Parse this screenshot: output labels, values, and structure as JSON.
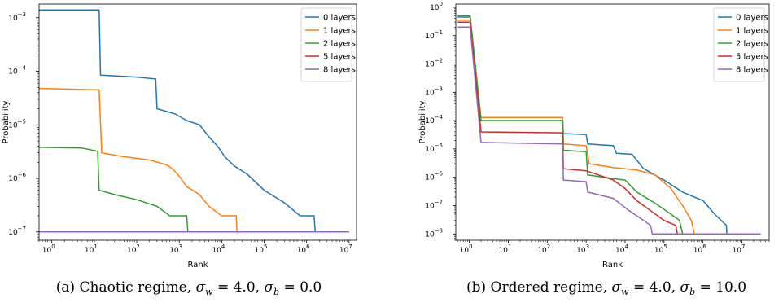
{
  "chart_data": [
    {
      "type": "line",
      "xscale": "log",
      "yscale": "log",
      "xlim": [
        0.5,
        15000000
      ],
      "ylim": [
        7e-08,
        0.0018
      ],
      "xlabel": "Rank",
      "ylabel": "Probability",
      "caption": "(a) Chaotic regime, σw = 4.0, σb = 0.0",
      "caption_parts": {
        "prefix": "(a) Chaotic regime, ",
        "s1": "σ",
        "s1_sub": "w",
        "v1": " = 4.0, ",
        "s2": "σ",
        "s2_sub": "b",
        "v2": " = 0.0"
      },
      "xticks": [
        {
          "v": 1,
          "exp": "0"
        },
        {
          "v": 10,
          "exp": "1"
        },
        {
          "v": 100,
          "exp": "2"
        },
        {
          "v": 1000,
          "exp": "3"
        },
        {
          "v": 10000,
          "exp": "4"
        },
        {
          "v": 100000,
          "exp": "5"
        },
        {
          "v": 1000000,
          "exp": "6"
        },
        {
          "v": 10000000,
          "exp": "7"
        }
      ],
      "yticks": [
        {
          "v": 1e-07,
          "exp": "−7"
        },
        {
          "v": 1e-06,
          "exp": "−6"
        },
        {
          "v": 1e-05,
          "exp": "−5"
        },
        {
          "v": 0.0001,
          "exp": "−4"
        },
        {
          "v": 0.001,
          "exp": "−3"
        }
      ],
      "tick_base": "10",
      "legend_position": "upper-right",
      "series": [
        {
          "name": "0 layers",
          "color": "#1f77b4",
          "points": [
            [
              0.5,
              0.0014
            ],
            [
              13,
              0.0014
            ],
            [
              14,
              8.5e-05
            ],
            [
              100,
              7.8e-05
            ],
            [
              280,
              7.2e-05
            ],
            [
              300,
              2e-05
            ],
            [
              800,
              1.6e-05
            ],
            [
              1500,
              1.2e-05
            ],
            [
              3000,
              1e-05
            ],
            [
              5000,
              6e-06
            ],
            [
              8000,
              4e-06
            ],
            [
              12000,
              2.5e-06
            ],
            [
              20000,
              1.7e-06
            ],
            [
              40000,
              1.2e-06
            ],
            [
              100000,
              6e-07
            ],
            [
              300000,
              3.5e-07
            ],
            [
              700000,
              2e-07
            ],
            [
              1500000,
              2e-07
            ],
            [
              1600000,
              1e-07
            ],
            [
              10000000,
              1e-07
            ]
          ]
        },
        {
          "name": "1 layers",
          "color": "#ff7f0e",
          "points": [
            [
              0.5,
              4.8e-05
            ],
            [
              4,
              4.6e-05
            ],
            [
              13,
              4.5e-05
            ],
            [
              15,
              3e-06
            ],
            [
              40,
              2.6e-06
            ],
            [
              200,
              2.2e-06
            ],
            [
              500,
              1.8e-06
            ],
            [
              700,
              1.5e-06
            ],
            [
              1000,
              1.1e-06
            ],
            [
              1500,
              7e-07
            ],
            [
              3000,
              5e-07
            ],
            [
              5000,
              3e-07
            ],
            [
              10000,
              2e-07
            ],
            [
              22000,
              2e-07
            ],
            [
              23000,
              1e-07
            ],
            [
              10000000,
              1e-07
            ]
          ]
        },
        {
          "name": "2 layers",
          "color": "#2ca02c",
          "points": [
            [
              0.5,
              3.8e-06
            ],
            [
              5,
              3.7e-06
            ],
            [
              12,
              3.2e-06
            ],
            [
              13,
              6e-07
            ],
            [
              30,
              5e-07
            ],
            [
              100,
              4e-07
            ],
            [
              300,
              3e-07
            ],
            [
              600,
              2e-07
            ],
            [
              1500,
              2e-07
            ],
            [
              1600,
              1e-07
            ],
            [
              10000000,
              1e-07
            ]
          ]
        },
        {
          "name": "5 layers",
          "color": "#d62728",
          "points": [
            [
              0.5,
              1e-07
            ],
            [
              10000000,
              1e-07
            ]
          ]
        },
        {
          "name": "8 layers",
          "color": "#9467bd",
          "points": [
            [
              0.5,
              1e-07
            ],
            [
              10000000,
              1e-07
            ]
          ]
        }
      ]
    },
    {
      "type": "line",
      "xscale": "log",
      "yscale": "log",
      "xlim": [
        0.45,
        50000000
      ],
      "ylim": [
        6e-09,
        1.3
      ],
      "xlabel": "Rank",
      "ylabel": "Probability",
      "caption": "(b) Ordered regime, σw = 4.0, σb = 10.0",
      "caption_parts": {
        "prefix": "(b) Ordered regime, ",
        "s1": "σ",
        "s1_sub": "w",
        "v1": " = 4.0, ",
        "s2": "σ",
        "s2_sub": "b",
        "v2": " = 10.0"
      },
      "xticks": [
        {
          "v": 1,
          "exp": "0"
        },
        {
          "v": 10,
          "exp": "1"
        },
        {
          "v": 100,
          "exp": "2"
        },
        {
          "v": 1000,
          "exp": "3"
        },
        {
          "v": 10000,
          "exp": "4"
        },
        {
          "v": 100000,
          "exp": "5"
        },
        {
          "v": 1000000,
          "exp": "6"
        },
        {
          "v": 10000000,
          "exp": "7"
        }
      ],
      "yticks": [
        {
          "v": 1e-08,
          "exp": "−8"
        },
        {
          "v": 1e-07,
          "exp": "−7"
        },
        {
          "v": 1e-06,
          "exp": "−6"
        },
        {
          "v": 1e-05,
          "exp": "−5"
        },
        {
          "v": 0.0001,
          "exp": "−4"
        },
        {
          "v": 0.001,
          "exp": "−3"
        },
        {
          "v": 0.01,
          "exp": "−2"
        },
        {
          "v": 0.1,
          "exp": "−1"
        },
        {
          "v": 1,
          "exp": "0"
        }
      ],
      "tick_base": "10",
      "legend_position": "upper-right",
      "series": [
        {
          "name": "0 layers",
          "color": "#1f77b4",
          "points": [
            [
              0.5,
              0.45
            ],
            [
              0.9,
              0.45
            ],
            [
              1.05,
              0.45
            ],
            [
              2,
              0.0001
            ],
            [
              250,
              0.0001
            ],
            [
              260,
              3.5e-05
            ],
            [
              1000,
              3.2e-05
            ],
            [
              1100,
              1.5e-05
            ],
            [
              5000,
              1.3e-05
            ],
            [
              6000,
              7e-06
            ],
            [
              15000,
              6.5e-06
            ],
            [
              30000,
              2e-06
            ],
            [
              100000,
              8e-07
            ],
            [
              300000,
              3e-07
            ],
            [
              1000000,
              1.5e-07
            ],
            [
              2000000,
              5e-08
            ],
            [
              4000000,
              2e-08
            ],
            [
              4100000,
              1e-08
            ],
            [
              30000000,
              1e-08
            ]
          ]
        },
        {
          "name": "1 layers",
          "color": "#ff7f0e",
          "points": [
            [
              0.5,
              0.35
            ],
            [
              1.05,
              0.35
            ],
            [
              2,
              0.00013
            ],
            [
              250,
              0.00013
            ],
            [
              260,
              1.5e-05
            ],
            [
              1000,
              1.3e-05
            ],
            [
              1200,
              3e-06
            ],
            [
              5000,
              2.2e-06
            ],
            [
              20000,
              1.8e-06
            ],
            [
              60000,
              1.2e-06
            ],
            [
              150000,
              4e-07
            ],
            [
              300000,
              1e-07
            ],
            [
              500000,
              3e-08
            ],
            [
              600000,
              1e-08
            ],
            [
              30000000,
              1e-08
            ]
          ]
        },
        {
          "name": "2 layers",
          "color": "#2ca02c",
          "points": [
            [
              0.5,
              0.5
            ],
            [
              1.05,
              0.5
            ],
            [
              2,
              0.0001
            ],
            [
              250,
              0.0001
            ],
            [
              260,
              9e-06
            ],
            [
              1000,
              8e-06
            ],
            [
              1100,
              1.2e-06
            ],
            [
              5000,
              9e-07
            ],
            [
              10000,
              8e-07
            ],
            [
              20000,
              3e-07
            ],
            [
              60000,
              1.2e-07
            ],
            [
              150000,
              5e-08
            ],
            [
              250000,
              3e-08
            ],
            [
              300000,
              1e-08
            ],
            [
              30000000,
              1e-08
            ]
          ]
        },
        {
          "name": "5 layers",
          "color": "#d62728",
          "points": [
            [
              0.5,
              0.3
            ],
            [
              1.05,
              0.3
            ],
            [
              2,
              4e-05
            ],
            [
              250,
              3.7e-05
            ],
            [
              260,
              2e-06
            ],
            [
              1000,
              1.7e-06
            ],
            [
              5000,
              8e-07
            ],
            [
              10000,
              4e-07
            ],
            [
              20000,
              1.5e-07
            ],
            [
              50000,
              6e-08
            ],
            [
              100000,
              3e-08
            ],
            [
              200000,
              2e-08
            ],
            [
              220000,
              1e-08
            ],
            [
              30000000,
              1e-08
            ]
          ]
        },
        {
          "name": "8 layers",
          "color": "#9467bd",
          "points": [
            [
              0.5,
              0.2
            ],
            [
              1.05,
              0.2
            ],
            [
              2,
              1.7e-05
            ],
            [
              250,
              1.5e-05
            ],
            [
              260,
              8e-07
            ],
            [
              1000,
              7e-07
            ],
            [
              1100,
              3e-07
            ],
            [
              5000,
              1.8e-07
            ],
            [
              12000,
              7e-08
            ],
            [
              30000,
              3e-08
            ],
            [
              45000,
              2e-08
            ],
            [
              50000,
              1e-08
            ],
            [
              30000000,
              1e-08
            ]
          ]
        }
      ]
    }
  ]
}
